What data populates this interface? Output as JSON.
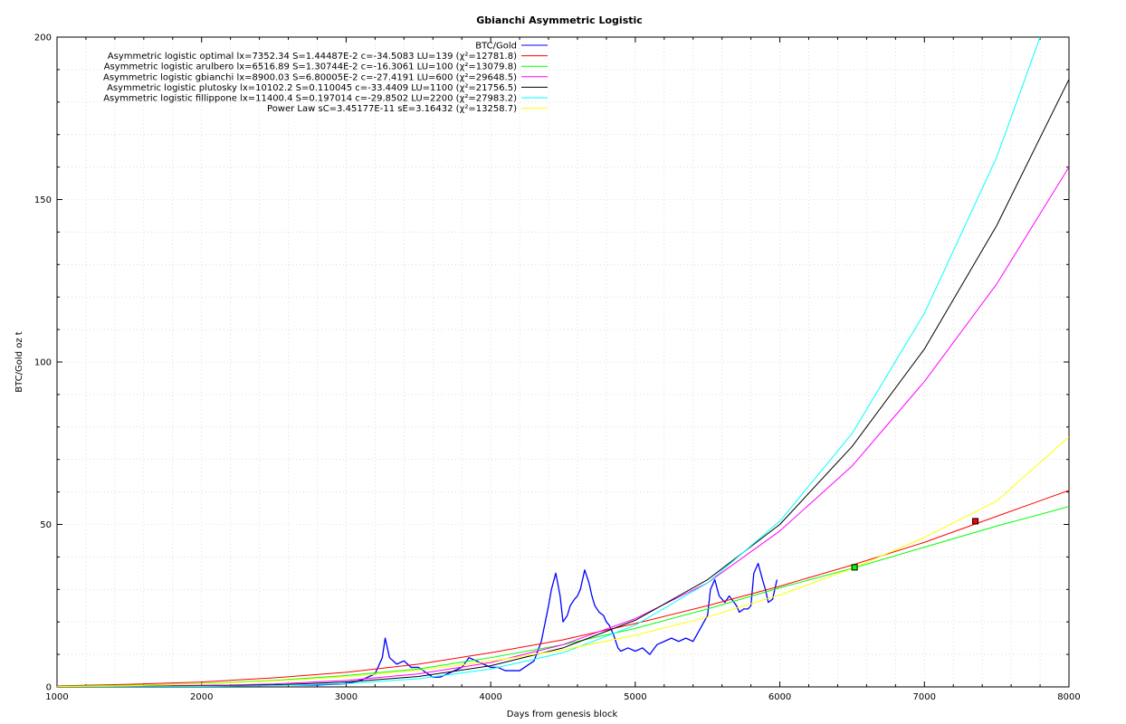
{
  "chart_data": {
    "type": "line",
    "title": "Gbianchi Asymmetric Logistic",
    "xlabel": "Days from genesis block",
    "ylabel": "BTC/Gold oz t",
    "xlim": [
      1000,
      8000
    ],
    "ylim": [
      0,
      200
    ],
    "x_ticks": [
      1000,
      2000,
      3000,
      4000,
      5000,
      6000,
      7000,
      8000
    ],
    "y_ticks": [
      0,
      50,
      100,
      150,
      200
    ],
    "grid": true,
    "legend_position": "top-center",
    "series": [
      {
        "name": "BTC/Gold",
        "color": "#0000ff",
        "x": [
          1000,
          1500,
          2000,
          2400,
          2800,
          3000,
          3100,
          3200,
          3250,
          3270,
          3300,
          3350,
          3400,
          3450,
          3500,
          3600,
          3650,
          3700,
          3800,
          3850,
          3900,
          3950,
          4000,
          4050,
          4100,
          4200,
          4300,
          4350,
          4400,
          4420,
          4450,
          4480,
          4500,
          4530,
          4550,
          4580,
          4600,
          4620,
          4650,
          4680,
          4700,
          4720,
          4750,
          4780,
          4800,
          4820,
          4850,
          4880,
          4900,
          4950,
          5000,
          5050,
          5100,
          5150,
          5200,
          5250,
          5300,
          5350,
          5400,
          5450,
          5500,
          5520,
          5550,
          5580,
          5600,
          5620,
          5650,
          5700,
          5720,
          5750,
          5780,
          5800,
          5820,
          5850,
          5880,
          5900,
          5920,
          5950,
          5980
        ],
        "values": [
          0,
          0.2,
          0.4,
          0.6,
          0.6,
          1,
          2,
          4,
          9,
          15,
          9,
          7,
          8,
          6,
          6,
          3,
          3,
          4,
          6,
          9,
          8,
          7,
          6,
          6,
          5,
          5,
          8,
          14,
          25,
          30,
          35,
          28,
          20,
          22,
          25,
          27,
          28,
          30,
          36,
          32,
          28,
          25,
          23,
          22,
          20,
          19,
          16,
          12,
          11,
          12,
          11,
          12,
          10,
          13,
          14,
          15,
          14,
          15,
          14,
          18,
          22,
          30,
          33,
          28,
          27,
          26,
          28,
          25,
          23,
          24,
          24,
          25,
          35,
          38,
          33,
          30,
          26,
          27,
          33
        ]
      },
      {
        "name": "Asymmetric logistic optimal lx=7352.34 S=1.44487E-2 c=-34.5083 LU=139 (χ²=12781.8)",
        "color": "#ff0000",
        "x": [
          1000,
          1500,
          2000,
          2500,
          3000,
          3500,
          4000,
          4500,
          5000,
          5500,
          6000,
          6500,
          7000,
          7500,
          8000
        ],
        "values": [
          0.3,
          0.8,
          1.5,
          2.8,
          4.5,
          7,
          10.5,
          14.5,
          19.5,
          25,
          31,
          37.5,
          44.5,
          52.5,
          60.5
        ],
        "marker": {
          "x": 7352.34,
          "y": 51
        }
      },
      {
        "name": "Asymmetric logistic arulbero lx=6516.89 S=1.30744E-2 c=-16.3061 LU=100 (χ²=13079.8)",
        "color": "#00ff00",
        "x": [
          1000,
          1500,
          2000,
          2500,
          3000,
          3500,
          4000,
          4500,
          5000,
          5500,
          6000,
          6500,
          7000,
          7500,
          8000
        ],
        "values": [
          0.2,
          0.5,
          1,
          2,
          3.5,
          5.5,
          9,
          13,
          18,
          24,
          30.5,
          36.5,
          43,
          49.5,
          55.5
        ],
        "marker": {
          "x": 6516.89,
          "y": 36.8
        }
      },
      {
        "name": "Asymmetric logistic gbianchi lx=8900.03 S=6.80005E-2 c=-27.4191 LU=600 (χ²=29648.5)",
        "color": "#ff00ff",
        "x": [
          1000,
          1500,
          2000,
          2500,
          3000,
          3500,
          4000,
          4500,
          5000,
          5500,
          6000,
          6500,
          7000,
          7500,
          8000
        ],
        "values": [
          0.05,
          0.15,
          0.4,
          0.9,
          2,
          4,
          7.5,
          13,
          21,
          32,
          48,
          68,
          94,
          124,
          160
        ]
      },
      {
        "name": "Asymmetric logistic plutosky lx=10102.2 S=0.110045 c=-33.4409 LU=1100 (χ²=21756.5)",
        "color": "#000000",
        "x": [
          1000,
          1500,
          2000,
          2500,
          3000,
          3500,
          4000,
          4500,
          5000,
          5500,
          6000,
          6500,
          7000,
          7500,
          8000
        ],
        "values": [
          0.02,
          0.08,
          0.25,
          0.6,
          1.5,
          3.2,
          6.5,
          12,
          20.5,
          33,
          50,
          74,
          104,
          142,
          187
        ]
      },
      {
        "name": "Asymmetric logistic fillippone lx=11400.4 S=0.197014 c=-29.8502 LU=2200 (χ²=27983.2)",
        "color": "#00ffff",
        "x": [
          1000,
          1500,
          2000,
          2500,
          3000,
          3500,
          4000,
          4500,
          5000,
          5500,
          6000,
          6500,
          7000,
          7500,
          7800
        ],
        "values": [
          0.01,
          0.05,
          0.15,
          0.4,
          1,
          2.5,
          5.5,
          10.5,
          19,
          32,
          51,
          78,
          115,
          163,
          200
        ]
      },
      {
        "name": "Power Law sC=3.45177E-11 sE=3.16432 (χ²=13258.7)",
        "color": "#ffff00",
        "x": [
          1000,
          1500,
          2000,
          2500,
          3000,
          3500,
          4000,
          4500,
          5000,
          5500,
          6000,
          6500,
          7000,
          7500,
          8000
        ],
        "values": [
          0.1,
          0.35,
          0.9,
          1.8,
          3.1,
          5.1,
          7.9,
          11.4,
          15.9,
          21.5,
          28.3,
          36.4,
          46,
          57.2,
          77
        ]
      }
    ]
  }
}
